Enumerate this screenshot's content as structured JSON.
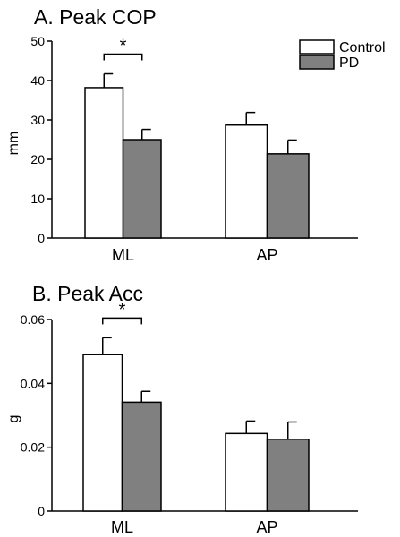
{
  "chart_data": [
    {
      "type": "bar",
      "title": "A. Peak COP",
      "xlabel": "",
      "ylabel": "mm",
      "categories": [
        "ML",
        "AP"
      ],
      "ylim": [
        0,
        50
      ],
      "yticks": [
        "0",
        "10",
        "20",
        "30",
        "40",
        "50"
      ],
      "series": [
        {
          "name": "Control",
          "color": "#ffffff",
          "values": [
            38.2,
            28.7
          ],
          "errors": [
            3.5,
            3.2
          ]
        },
        {
          "name": "PD",
          "color": "#808080",
          "values": [
            25.0,
            21.4
          ],
          "errors": [
            2.6,
            3.5
          ]
        }
      ],
      "significance": [
        {
          "category": "ML",
          "label": "*"
        }
      ],
      "legend": "top-right",
      "grid": false
    },
    {
      "type": "bar",
      "title": "B. Peak Acc",
      "xlabel": "",
      "ylabel": "g",
      "categories": [
        "ML",
        "AP"
      ],
      "ylim": [
        0,
        0.06
      ],
      "yticks": [
        "0",
        "0.02",
        "0.04",
        "0.06"
      ],
      "series": [
        {
          "name": "Control",
          "color": "#ffffff",
          "values": [
            0.049,
            0.0243
          ],
          "errors": [
            0.0053,
            0.0039
          ]
        },
        {
          "name": "PD",
          "color": "#808080",
          "values": [
            0.0341,
            0.0225
          ],
          "errors": [
            0.0034,
            0.0054
          ]
        }
      ],
      "significance": [
        {
          "category": "ML",
          "label": "*"
        }
      ],
      "legend": "none",
      "grid": false
    }
  ]
}
